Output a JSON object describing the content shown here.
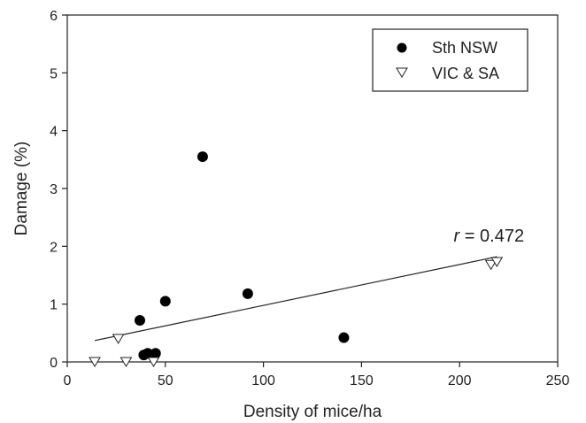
{
  "chart_data": {
    "type": "scatter",
    "xlabel": "Density of mice/ha",
    "ylabel": "Damage (%)",
    "xlim": [
      0,
      250
    ],
    "ylim": [
      0,
      6
    ],
    "xticks": [
      "0",
      "50",
      "100",
      "150",
      "200",
      "250"
    ],
    "yticks": [
      "0",
      "1",
      "2",
      "3",
      "4",
      "5",
      "6"
    ],
    "grid": false,
    "legend_position": "top-right",
    "series": [
      {
        "name": "Sth NSW",
        "marker": "filled-circle",
        "color": "#000000",
        "points": [
          {
            "x": 37,
            "y": 0.72
          },
          {
            "x": 39,
            "y": 0.12
          },
          {
            "x": 41,
            "y": 0.15
          },
          {
            "x": 45,
            "y": 0.15
          },
          {
            "x": 50,
            "y": 1.05
          },
          {
            "x": 69,
            "y": 3.55
          },
          {
            "x": 92,
            "y": 1.18
          },
          {
            "x": 141,
            "y": 0.42
          }
        ]
      },
      {
        "name": "VIC & SA",
        "marker": "open-triangle-down",
        "color": "#000000",
        "points": [
          {
            "x": 14,
            "y": 0.0
          },
          {
            "x": 26,
            "y": 0.4
          },
          {
            "x": 30,
            "y": 0.0
          },
          {
            "x": 44,
            "y": 0.0
          },
          {
            "x": 216,
            "y": 1.68
          },
          {
            "x": 219,
            "y": 1.73
          }
        ]
      }
    ],
    "regression_line": {
      "x": [
        14,
        219
      ],
      "y": [
        0.37,
        1.82
      ]
    },
    "annotation": {
      "italic": "r",
      "text": " = 0.472",
      "x": 197,
      "y": 2.08
    }
  }
}
